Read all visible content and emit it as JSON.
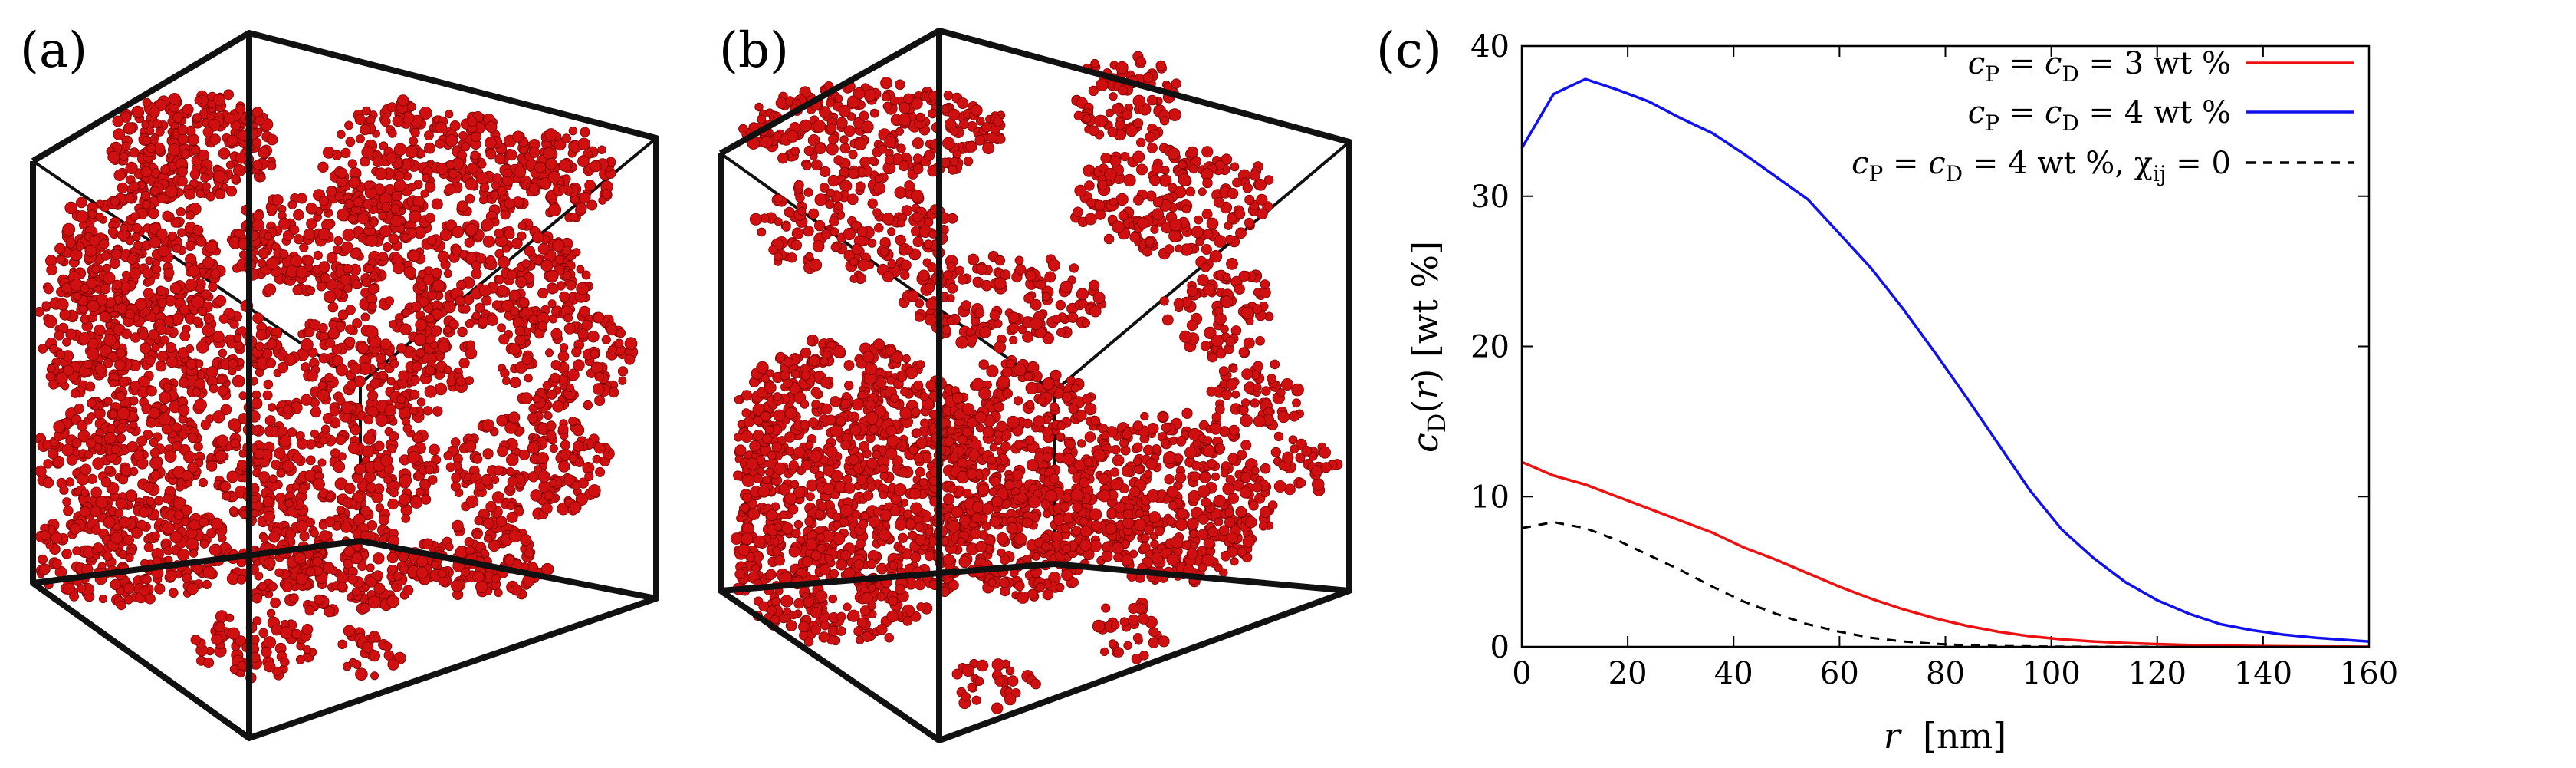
{
  "panels": {
    "a": {
      "label": "(a)"
    },
    "b": {
      "label": "(b)"
    },
    "c": {
      "label": "(c)"
    }
  },
  "colors": {
    "particles": "#d01010",
    "box_edges": "#111111",
    "series_3wt": "#ee1111",
    "series_4wt": "#1111ee",
    "series_4wt_chi0": "#000000"
  },
  "chart_data": {
    "type": "line",
    "title": "",
    "xlabel": "r  [nm]",
    "ylabel": "c_D(r) [wt %]",
    "xlim": [
      0,
      160
    ],
    "ylim": [
      0,
      40
    ],
    "xticks": [
      0,
      20,
      40,
      60,
      80,
      100,
      120,
      140,
      160
    ],
    "yticks": [
      0,
      10,
      20,
      30,
      40
    ],
    "legend_position": "top-right",
    "series": [
      {
        "name": "c_P = c_D = 3 wt %",
        "legend": {
          "main": "c",
          "sub1": "P",
          "mid": " = c",
          "sub2": "D",
          "tail": " = 3 wt %",
          "extra": "",
          "extra_sub": "",
          "extra_tail": ""
        },
        "style": "solid",
        "x": [
          0,
          6,
          12,
          18,
          24,
          30,
          36,
          42,
          48,
          54,
          60,
          66,
          72,
          78,
          84,
          90,
          96,
          102,
          108,
          114,
          120,
          126,
          132,
          138,
          144,
          150,
          156,
          160
        ],
        "y": [
          12.3,
          11.4,
          10.8,
          10.0,
          9.2,
          8.4,
          7.6,
          6.6,
          5.8,
          4.9,
          4.0,
          3.2,
          2.5,
          1.9,
          1.4,
          1.0,
          0.7,
          0.5,
          0.35,
          0.25,
          0.18,
          0.12,
          0.08,
          0.05,
          0.03,
          0.02,
          0.01,
          0.0
        ]
      },
      {
        "name": "c_P = c_D = 4 wt %",
        "legend": {
          "main": "c",
          "sub1": "P",
          "mid": " = c",
          "sub2": "D",
          "tail": " = 4 wt %",
          "extra": "",
          "extra_sub": "",
          "extra_tail": ""
        },
        "style": "solid",
        "x": [
          0,
          6,
          12,
          18,
          24,
          30,
          36,
          42,
          48,
          54,
          60,
          66,
          72,
          78,
          84,
          90,
          96,
          102,
          108,
          114,
          120,
          126,
          132,
          138,
          144,
          150,
          156,
          160
        ],
        "y": [
          33.2,
          36.8,
          37.8,
          37.1,
          36.3,
          35.2,
          34.2,
          32.8,
          31.3,
          29.8,
          27.5,
          25.2,
          22.5,
          19.6,
          16.6,
          13.5,
          10.4,
          7.8,
          5.9,
          4.3,
          3.1,
          2.2,
          1.5,
          1.1,
          0.8,
          0.6,
          0.45,
          0.35
        ]
      },
      {
        "name": "c_P = c_D = 4 wt %, χ_ij = 0",
        "legend": {
          "main": "c",
          "sub1": "P",
          "mid": " = c",
          "sub2": "D",
          "tail": " = 4 wt %, ",
          "extra": "χ",
          "extra_sub": "ij",
          "extra_tail": " = 0"
        },
        "style": "dashed",
        "x": [
          0,
          6,
          12,
          18,
          24,
          30,
          36,
          42,
          48,
          54,
          60,
          66,
          72,
          78,
          84,
          90,
          96,
          102,
          108,
          114,
          120
        ],
        "y": [
          7.9,
          8.3,
          7.9,
          7.1,
          6.1,
          5.1,
          4.0,
          3.0,
          2.2,
          1.5,
          1.0,
          0.6,
          0.35,
          0.2,
          0.1,
          0.05,
          0.03,
          0.01,
          0.0,
          0.0,
          0.0
        ]
      }
    ]
  }
}
